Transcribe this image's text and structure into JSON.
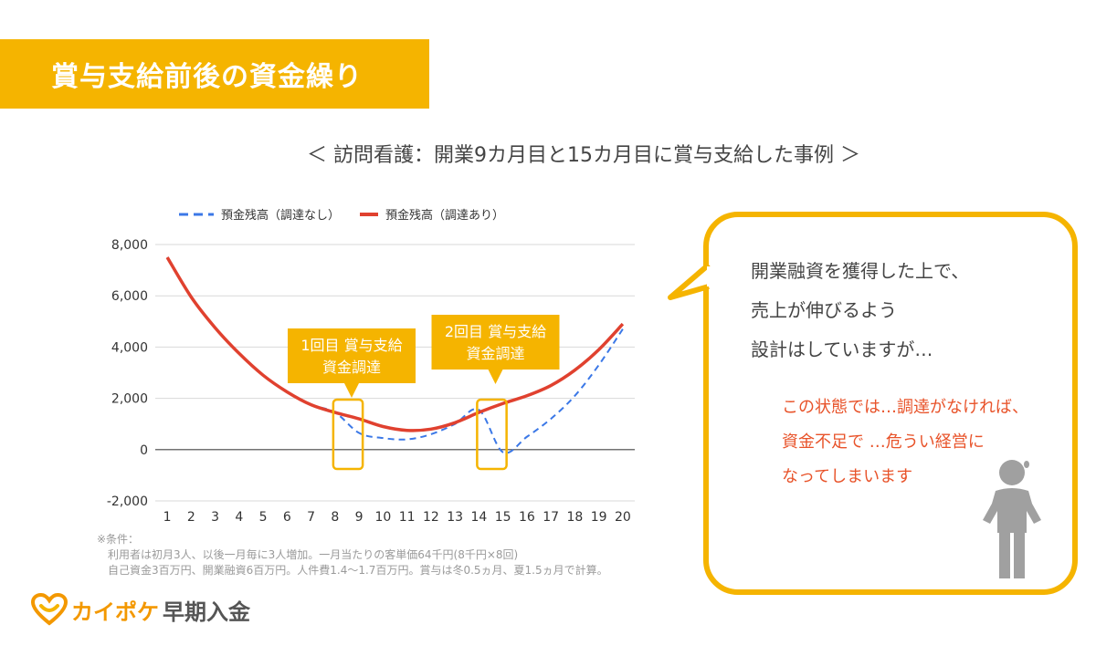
{
  "header": {
    "title": "賞与支給前後の資金繰り"
  },
  "subtitle": "＜ 訪問看護：開業9カ月目と15カ月目に賞与支給した事例 ＞",
  "chart_data": {
    "type": "line",
    "title": "",
    "xlabel": "",
    "ylabel": "",
    "categories": [
      "1",
      "2",
      "3",
      "4",
      "5",
      "6",
      "7",
      "8",
      "9",
      "10",
      "11",
      "12",
      "13",
      "14",
      "15",
      "16",
      "17",
      "18",
      "19",
      "20"
    ],
    "ylim": [
      -2000,
      8000
    ],
    "yticks": [
      "8,000",
      "6,000",
      "4,000",
      "2,000",
      "0",
      "-2,000"
    ],
    "ytick_values": [
      8000,
      6000,
      4000,
      2000,
      0,
      -2000
    ],
    "grid": true,
    "legend_position": "top",
    "series": [
      {
        "name": "預金残高（調達なし）",
        "style": "dashed",
        "color": "#3b78e7",
        "values": [
          7500,
          5950,
          4750,
          3750,
          2900,
          2250,
          1750,
          1450,
          650,
          450,
          400,
          600,
          1000,
          1550,
          -100,
          500,
          1200,
          2100,
          3300,
          4700
        ]
      },
      {
        "name": "預金残高（調達あり）",
        "style": "solid",
        "color": "#e0412f",
        "values": [
          7500,
          5950,
          4750,
          3750,
          2900,
          2250,
          1750,
          1450,
          1200,
          900,
          750,
          800,
          1050,
          1450,
          1800,
          2100,
          2500,
          3100,
          3900,
          4900
        ]
      }
    ],
    "annotations": [
      {
        "label_lines": [
          "1回目 賞与支給",
          "資金調達"
        ],
        "x_range": [
          8,
          9
        ]
      },
      {
        "label_lines": [
          "2回目 賞与支給",
          "資金調達"
        ],
        "x_range": [
          14,
          15
        ]
      }
    ]
  },
  "callout": {
    "lines": [
      "開業融資を獲得した上で、",
      "売上が伸びるよう",
      "設計はしていますが…"
    ],
    "warning_lines": [
      "この状態では…調達がなければ、",
      "資金不足で …危うい経営に",
      "なってしまいます"
    ]
  },
  "notes": {
    "heading": "※条件：",
    "line1": "利用者は初月3人、以後一月毎に3人増加。一月当たりの客単価64千円(8千円×8回)",
    "line2": "自己資金3百万円、開業融資6百万円。人件費1.4〜1.7百万円。賞与は冬0.5ヵ月、夏1.5ヵ月で計算。"
  },
  "logo": {
    "brand": "カイポケ",
    "product": "早期入金"
  },
  "colors": {
    "accent": "#f5b400",
    "series_no_funding": "#3b78e7",
    "series_with_funding": "#e0412f",
    "warning_text": "#e8532a"
  },
  "icons": [
    "heart-logo-icon",
    "worried-person-icon"
  ]
}
